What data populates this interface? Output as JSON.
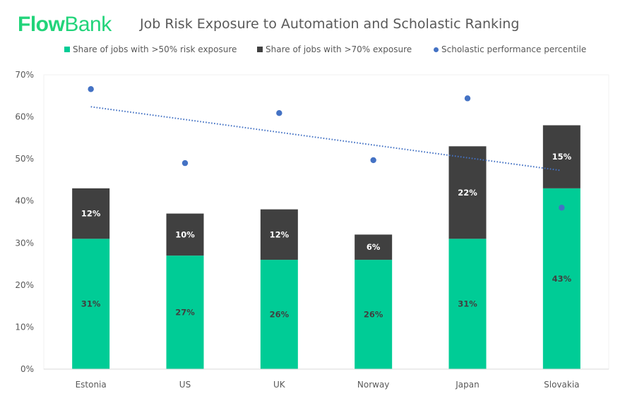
{
  "brand": {
    "logo_part1": "Flow",
    "logo_part2": "Bank",
    "color": "#22d47a"
  },
  "colors": {
    "series1": "#00cc96",
    "series2": "#404040",
    "scatter": "#4472c4",
    "label_dark": "#404040",
    "label_light": "#ffffff"
  },
  "chart_data": {
    "type": "bar",
    "subtype": "stacked-bar-with-scatter-and-trendline",
    "title": "Job Risk Exposure to Automation and Scholastic Ranking",
    "xlabel": "",
    "ylabel": "",
    "ylim": [
      0,
      70
    ],
    "yticks": [
      0,
      10,
      20,
      30,
      40,
      50,
      60,
      70
    ],
    "ytick_labels": [
      "0%",
      "10%",
      "20%",
      "30%",
      "40%",
      "50%",
      "60%",
      "70%"
    ],
    "grid": false,
    "legend_position": "top",
    "categories": [
      "Estonia",
      "US",
      "UK",
      "Norway",
      "Japan",
      "Slovakia"
    ],
    "series": [
      {
        "name": "Share of jobs with >50% risk exposure",
        "type": "bar",
        "values": [
          31,
          27,
          26,
          26,
          31,
          43
        ],
        "labels": [
          "31%",
          "27%",
          "26%",
          "26%",
          "31%",
          "43%"
        ]
      },
      {
        "name": "Share of jobs with >70% exposure",
        "type": "bar",
        "values": [
          12,
          10,
          12,
          6,
          22,
          15
        ],
        "labels": [
          "12%",
          "10%",
          "12%",
          "6%",
          "22%",
          "15%"
        ]
      },
      {
        "name": "Scholastic performance percentile",
        "type": "scatter",
        "values": [
          66.6,
          49.0,
          60.9,
          49.7,
          64.4,
          38.4
        ]
      }
    ],
    "trendline": {
      "series": "Scholastic performance percentile",
      "style": "dotted",
      "start": 62.4,
      "end": 47.3
    }
  }
}
